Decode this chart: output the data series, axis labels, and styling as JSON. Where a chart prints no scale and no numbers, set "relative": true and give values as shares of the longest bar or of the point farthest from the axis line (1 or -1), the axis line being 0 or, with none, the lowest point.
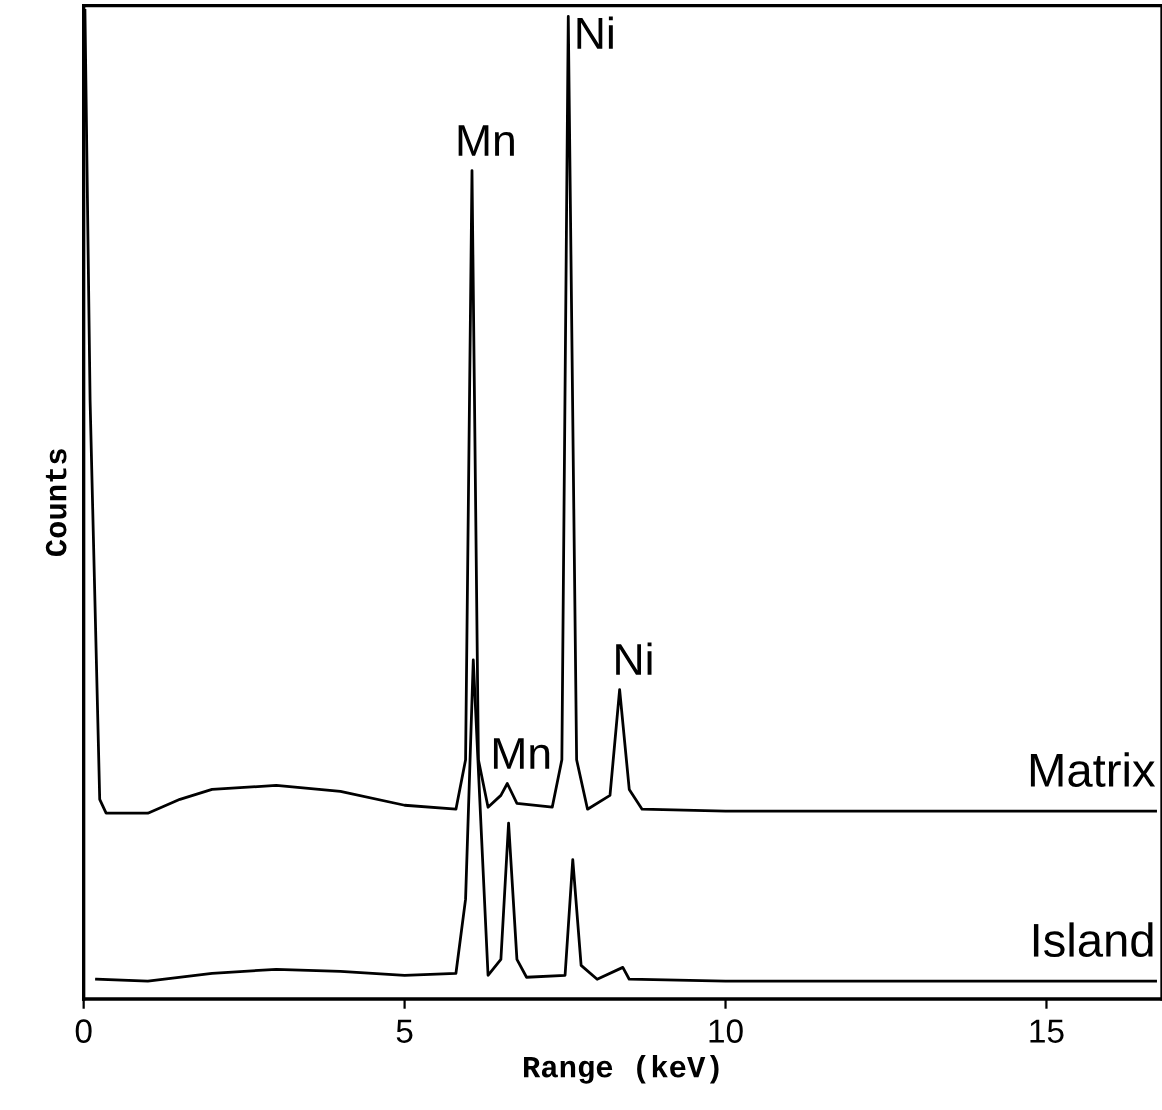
{
  "chart_data": {
    "type": "line",
    "xlabel": "Range (keV)",
    "ylabel": "Counts",
    "relative": true,
    "xlim": [
      0,
      16.8
    ],
    "xticks": [
      0,
      5,
      10,
      15
    ],
    "grid": false,
    "legend": false,
    "series": [
      {
        "name": "Matrix",
        "color": "#000000",
        "x": [
          0.02,
          0.1,
          0.25,
          0.35,
          1.0,
          1.5,
          2.0,
          3.0,
          4.0,
          5.0,
          5.8,
          5.95,
          6.05,
          6.15,
          6.3,
          6.5,
          6.6,
          6.75,
          7.3,
          7.45,
          7.55,
          7.68,
          7.85,
          8.2,
          8.35,
          8.5,
          8.7,
          10,
          12,
          15,
          16.7
        ],
        "values": [
          1.0,
          0.606,
          0.202,
          0.188,
          0.188,
          0.202,
          0.212,
          0.216,
          0.21,
          0.196,
          0.192,
          0.242,
          0.838,
          0.242,
          0.194,
          0.206,
          0.218,
          0.198,
          0.194,
          0.242,
          0.994,
          0.242,
          0.192,
          0.206,
          0.313,
          0.212,
          0.192,
          0.19,
          0.19,
          0.19,
          0.19
        ]
      },
      {
        "name": "Island",
        "color": "#000000",
        "x": [
          0.2,
          1.0,
          2.0,
          3.0,
          4.0,
          5.0,
          5.8,
          5.95,
          6.07,
          6.2,
          6.3,
          6.5,
          6.62,
          6.75,
          6.9,
          7.5,
          7.62,
          7.75,
          8.0,
          8.4,
          8.5,
          10,
          16.7
        ],
        "values": [
          0.02,
          0.018,
          0.026,
          0.03,
          0.028,
          0.024,
          0.026,
          0.101,
          0.343,
          0.162,
          0.024,
          0.04,
          0.178,
          0.04,
          0.022,
          0.024,
          0.141,
          0.034,
          0.02,
          0.032,
          0.02,
          0.018,
          0.018
        ]
      }
    ],
    "annotations": [
      {
        "text": "Mn",
        "x": 6.05,
        "y": 0.838
      },
      {
        "text": "Ni",
        "x": 7.55,
        "y": 0.994
      },
      {
        "text": "Mn",
        "x": 6.6,
        "y": 0.218
      },
      {
        "text": "Ni",
        "x": 8.35,
        "y": 0.313
      }
    ]
  }
}
